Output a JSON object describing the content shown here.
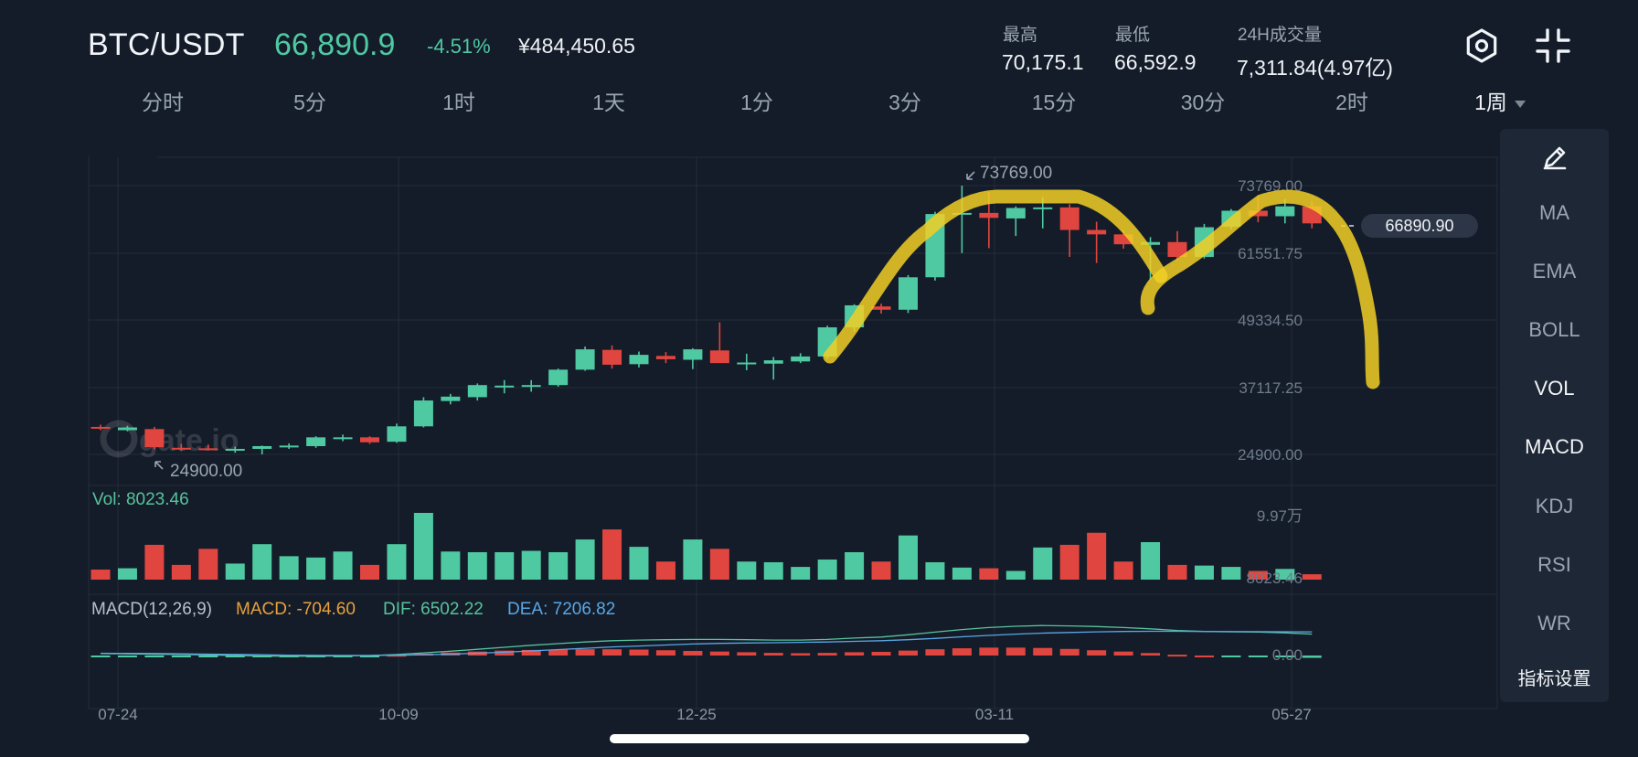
{
  "header": {
    "pair": "BTC/USDT",
    "price": "66,890.9",
    "change": "-4.51%",
    "cny_price": "¥484,450.65",
    "stats": [
      {
        "label": "最高",
        "value": "70,175.1"
      },
      {
        "label": "最低",
        "value": "66,592.9"
      },
      {
        "label": "24H成交量",
        "value": "7,311.84(4.97亿)"
      }
    ],
    "icons": [
      "settings-hex-icon",
      "collapse-icon"
    ]
  },
  "tabs": [
    "分时",
    "5分",
    "1时",
    "1天",
    "1分",
    "3分",
    "15分",
    "30分",
    "2时",
    "1周"
  ],
  "active_tab": "1周",
  "sidebar": {
    "items": [
      "MA",
      "EMA",
      "BOLL",
      "VOL",
      "MACD",
      "KDJ",
      "RSI",
      "WR"
    ],
    "active": [
      "VOL",
      "MACD"
    ],
    "settings_label": "指标设置",
    "top_icon": "pencil-icon"
  },
  "colors": {
    "up": "#4fc9a2",
    "down": "#e0463f",
    "background": "#141c29",
    "highlight": "#f1cf24"
  },
  "chart_data": {
    "type": "candlestick",
    "timeframe": "1周",
    "watermark": "gate.io",
    "price_axis_labels": [
      "73769.00",
      "61551.75",
      "49334.50",
      "37117.25",
      "24900.00"
    ],
    "ylim": [
      24900,
      73769
    ],
    "max_marker": "73769.00",
    "min_marker": "24900.00",
    "last_price_label": "66890.90",
    "date_labels": [
      "07-24",
      "10-09",
      "12-25",
      "03-11",
      "05-27"
    ],
    "candles": [
      {
        "o": 29900,
        "h": 30300,
        "l": 29300,
        "c": 29600
      },
      {
        "o": 29300,
        "h": 30100,
        "l": 29100,
        "c": 29800
      },
      {
        "o": 29500,
        "h": 29900,
        "l": 25800,
        "c": 26200
      },
      {
        "o": 26100,
        "h": 26800,
        "l": 25500,
        "c": 25900
      },
      {
        "o": 26000,
        "h": 26700,
        "l": 25600,
        "c": 25800
      },
      {
        "o": 25800,
        "h": 26300,
        "l": 25200,
        "c": 25900
      },
      {
        "o": 25900,
        "h": 26500,
        "l": 24900,
        "c": 26400
      },
      {
        "o": 26300,
        "h": 26900,
        "l": 25900,
        "c": 26500
      },
      {
        "o": 26400,
        "h": 28200,
        "l": 26100,
        "c": 28000
      },
      {
        "o": 27900,
        "h": 28500,
        "l": 27300,
        "c": 28000
      },
      {
        "o": 28000,
        "h": 28200,
        "l": 26800,
        "c": 27100
      },
      {
        "o": 27200,
        "h": 30500,
        "l": 27000,
        "c": 30000
      },
      {
        "o": 30000,
        "h": 35300,
        "l": 29800,
        "c": 34700
      },
      {
        "o": 34600,
        "h": 35900,
        "l": 34000,
        "c": 35400
      },
      {
        "o": 35300,
        "h": 37800,
        "l": 34700,
        "c": 37500
      },
      {
        "o": 37300,
        "h": 38400,
        "l": 36000,
        "c": 37400
      },
      {
        "o": 37400,
        "h": 38400,
        "l": 36300,
        "c": 37500
      },
      {
        "o": 37500,
        "h": 40500,
        "l": 37200,
        "c": 40300
      },
      {
        "o": 40300,
        "h": 44500,
        "l": 40100,
        "c": 44000
      },
      {
        "o": 43900,
        "h": 44700,
        "l": 40500,
        "c": 41200
      },
      {
        "o": 41300,
        "h": 43600,
        "l": 40700,
        "c": 43000
      },
      {
        "o": 42800,
        "h": 43500,
        "l": 41500,
        "c": 42200
      },
      {
        "o": 42100,
        "h": 44200,
        "l": 40400,
        "c": 44000
      },
      {
        "o": 43800,
        "h": 48900,
        "l": 41700,
        "c": 41500
      },
      {
        "o": 41500,
        "h": 43200,
        "l": 40200,
        "c": 41600
      },
      {
        "o": 41400,
        "h": 42600,
        "l": 38500,
        "c": 42000
      },
      {
        "o": 41800,
        "h": 43300,
        "l": 41500,
        "c": 42700
      },
      {
        "o": 42700,
        "h": 48300,
        "l": 42300,
        "c": 48000
      },
      {
        "o": 48000,
        "h": 52200,
        "l": 47200,
        "c": 52000
      },
      {
        "o": 51800,
        "h": 52300,
        "l": 50500,
        "c": 51200
      },
      {
        "o": 51200,
        "h": 57500,
        "l": 50600,
        "c": 57100
      },
      {
        "o": 57100,
        "h": 69000,
        "l": 56500,
        "c": 68600
      },
      {
        "o": 68500,
        "h": 73769,
        "l": 61500,
        "c": 68800
      },
      {
        "o": 68800,
        "h": 72600,
        "l": 62400,
        "c": 67900
      },
      {
        "o": 67800,
        "h": 70000,
        "l": 64600,
        "c": 69700
      },
      {
        "o": 69700,
        "h": 71700,
        "l": 66000,
        "c": 69800
      },
      {
        "o": 69800,
        "h": 70400,
        "l": 60800,
        "c": 65700
      },
      {
        "o": 65700,
        "h": 67200,
        "l": 59700,
        "c": 64900
      },
      {
        "o": 64900,
        "h": 65700,
        "l": 62300,
        "c": 63100
      },
      {
        "o": 63000,
        "h": 64400,
        "l": 56600,
        "c": 63500
      },
      {
        "o": 63500,
        "h": 65500,
        "l": 60200,
        "c": 60800
      },
      {
        "o": 60800,
        "h": 66800,
        "l": 60500,
        "c": 66200
      },
      {
        "o": 66300,
        "h": 69500,
        "l": 65800,
        "c": 69200
      },
      {
        "o": 69200,
        "h": 72000,
        "l": 67100,
        "c": 68200
      },
      {
        "o": 68200,
        "h": 71300,
        "l": 66900,
        "c": 70000
      },
      {
        "o": 70000,
        "h": 71000,
        "l": 66000,
        "c": 66900
      }
    ],
    "volume": {
      "label": "Vol: 8023.46",
      "axis_labels": [
        "9.97万",
        "8023.46"
      ],
      "max": 99700,
      "values": [
        15000,
        17000,
        52000,
        22000,
        46000,
        24000,
        53000,
        35000,
        33000,
        42000,
        22000,
        53000,
        99700,
        42000,
        41000,
        41000,
        43000,
        41000,
        60000,
        75000,
        49000,
        27000,
        60000,
        46000,
        27000,
        26000,
        19000,
        30000,
        41000,
        27000,
        66000,
        26000,
        18000,
        17000,
        13000,
        48000,
        52000,
        70000,
        27000,
        56000,
        22000,
        21000,
        19000,
        13000,
        16000,
        8023.46
      ]
    },
    "macd": {
      "label": "MACD(12,26,9)",
      "macd_label": "MACD: -704.60",
      "dif_label": "DIF: 6502.22",
      "dea_label": "DEA: 7206.82",
      "axis_label": "0.00",
      "ylim": [
        -1400,
        10000
      ],
      "dif": [
        600,
        500,
        400,
        300,
        200,
        0,
        -150,
        -250,
        -200,
        -100,
        0,
        300,
        800,
        1300,
        1900,
        2500,
        3100,
        3600,
        4100,
        4500,
        4700,
        4800,
        4900,
        4900,
        4800,
        4700,
        4700,
        4900,
        5300,
        5600,
        6300,
        7100,
        7900,
        8500,
        8900,
        9100,
        9000,
        8800,
        8500,
        8100,
        7600,
        7300,
        7200,
        7100,
        6900,
        6502.22
      ],
      "dea": [
        700,
        650,
        600,
        520,
        430,
        330,
        220,
        120,
        50,
        20,
        20,
        80,
        220,
        420,
        700,
        1000,
        1400,
        1800,
        2200,
        2600,
        2900,
        3200,
        3500,
        3700,
        3800,
        3900,
        4000,
        4100,
        4300,
        4500,
        4800,
        5200,
        5700,
        6100,
        6500,
        6800,
        7000,
        7200,
        7300,
        7350,
        7350,
        7300,
        7270,
        7250,
        7230,
        7206.82
      ],
      "hist": [
        -100,
        -150,
        -200,
        -220,
        -230,
        -330,
        -370,
        -370,
        -250,
        -120,
        -20,
        220,
        580,
        880,
        1200,
        1500,
        1700,
        1800,
        1900,
        1900,
        1800,
        1600,
        1400,
        1200,
        1000,
        800,
        700,
        800,
        1000,
        1100,
        1500,
        1900,
        2200,
        2400,
        2400,
        2300,
        2000,
        1600,
        1200,
        750,
        250,
        0,
        -70,
        -150,
        -330,
        -704.6
      ]
    }
  }
}
